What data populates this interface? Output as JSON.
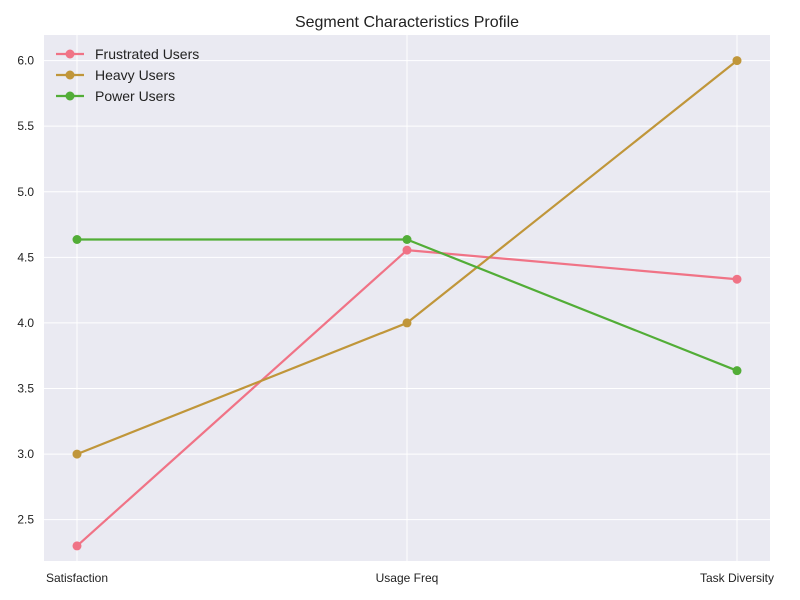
{
  "chart_data": {
    "type": "line",
    "title": "Segment Characteristics Profile",
    "xlabel": "",
    "ylabel": "",
    "categories": [
      "Satisfaction",
      "Usage Freq",
      "Task Diversity"
    ],
    "ylim": [
      2.185,
      6.195
    ],
    "yticks": [
      2.5,
      3.0,
      3.5,
      4.0,
      4.5,
      5.0,
      5.5,
      6.0
    ],
    "grid": true,
    "legend_position": "top-left",
    "series": [
      {
        "name": "Frustrated Users",
        "color": "#f07386",
        "values": [
          2.3,
          4.555,
          4.333
        ]
      },
      {
        "name": "Heavy Users",
        "color": "#c0963a",
        "values": [
          3.0,
          4.0,
          6.0
        ]
      },
      {
        "name": "Power Users",
        "color": "#52ad37",
        "values": [
          4.636,
          4.636,
          3.636
        ]
      }
    ]
  }
}
